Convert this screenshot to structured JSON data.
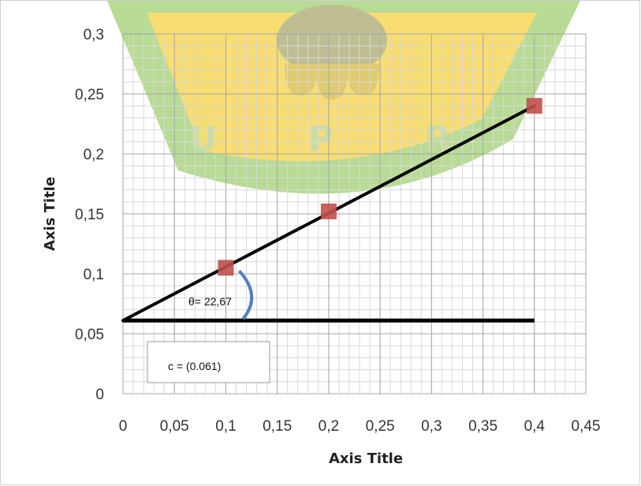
{
  "chart_data": {
    "type": "scatter",
    "xlabel": "Axis Title",
    "ylabel": "Axis Title",
    "xlim": [
      0,
      0.45
    ],
    "ylim": [
      0,
      0.3
    ],
    "x_ticks": [
      "0",
      "0,05",
      "0,1",
      "0,15",
      "0,2",
      "0,25",
      "0,3",
      "0,35",
      "0,4",
      "0,45"
    ],
    "y_ticks": [
      "0",
      "0,05",
      "0,1",
      "0,15",
      "0,2",
      "0,25",
      "0,3"
    ],
    "x_tick_values": [
      0,
      0.05,
      0.1,
      0.15,
      0.2,
      0.25,
      0.3,
      0.35,
      0.4,
      0.45
    ],
    "y_tick_values": [
      0,
      0.05,
      0.1,
      0.15,
      0.2,
      0.25,
      0.3
    ],
    "grid": true,
    "series": [
      {
        "points": [
          {
            "x": 0.1,
            "y": 0.105
          },
          {
            "x": 0.2,
            "y": 0.152
          },
          {
            "x": 0.4,
            "y": 0.24
          }
        ],
        "color": "#c0504d"
      }
    ],
    "trendline": {
      "x": [
        0,
        0.4
      ],
      "y": [
        0.061,
        0.24
      ],
      "color": "#000000"
    },
    "baseline": {
      "x": [
        0,
        0.4
      ],
      "y": [
        0.061,
        0.061
      ],
      "color": "#000000"
    },
    "angle_arc_color": "#4f81bd",
    "annotations": {
      "theta": "θ= 22,67",
      "intercept": "c = (0.061)"
    }
  },
  "watermark": {
    "text": "U P R",
    "colors": {
      "ring": "#7fbf3f",
      "inner": "#f2c200"
    }
  }
}
